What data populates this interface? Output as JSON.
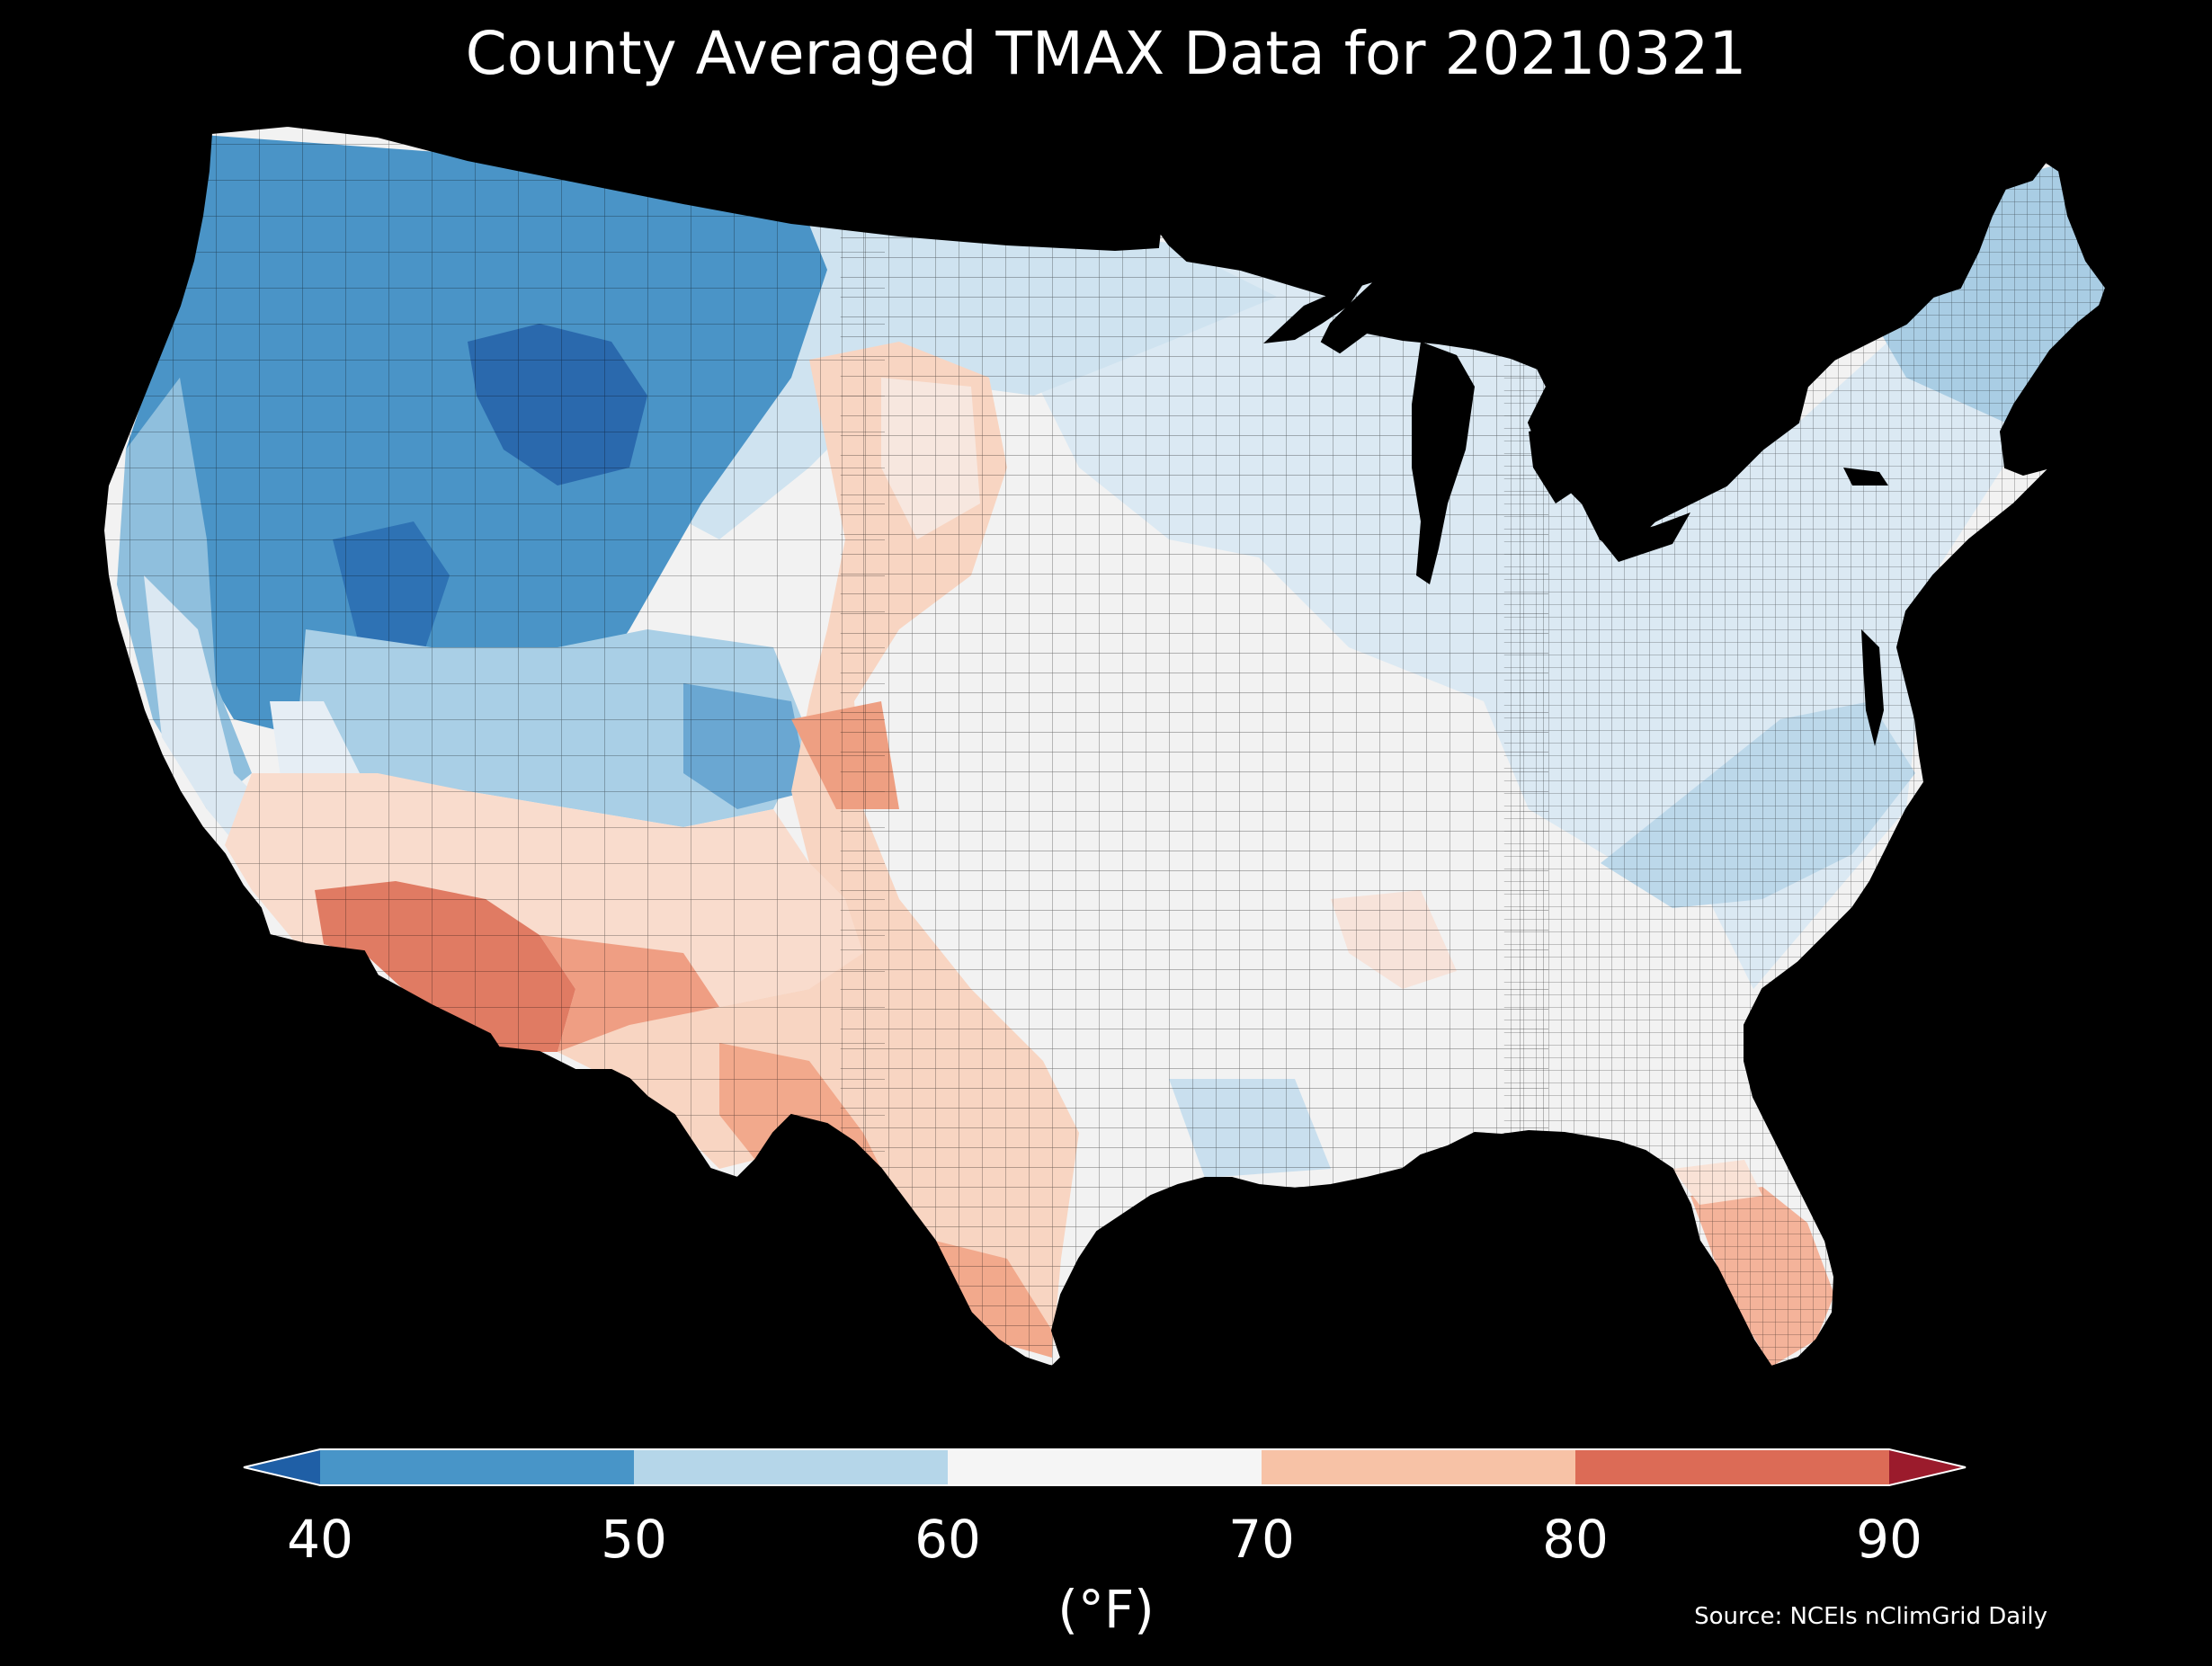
{
  "title": "County Averaged TMAX Data for 20210321",
  "colorbar": {
    "ticks": [
      "40",
      "50",
      "60",
      "70",
      "80",
      "90"
    ],
    "unit": "(°F)",
    "bins": [
      {
        "range": "<40",
        "color": "#1f5fa6"
      },
      {
        "range": "40-50",
        "color": "#4895c8"
      },
      {
        "range": "50-60",
        "color": "#b5d6e9"
      },
      {
        "range": "60-70",
        "color": "#f5f5f5"
      },
      {
        "range": "70-80",
        "color": "#f7c2a6"
      },
      {
        "range": "80-90",
        "color": "#dc6b56"
      },
      {
        "range": ">90",
        "color": "#9b1b2c"
      }
    ]
  },
  "source": "Source: NCEIs nClimGrid Daily",
  "map": {
    "region": "Contiguous United States (county level)",
    "background": "#000000"
  }
}
